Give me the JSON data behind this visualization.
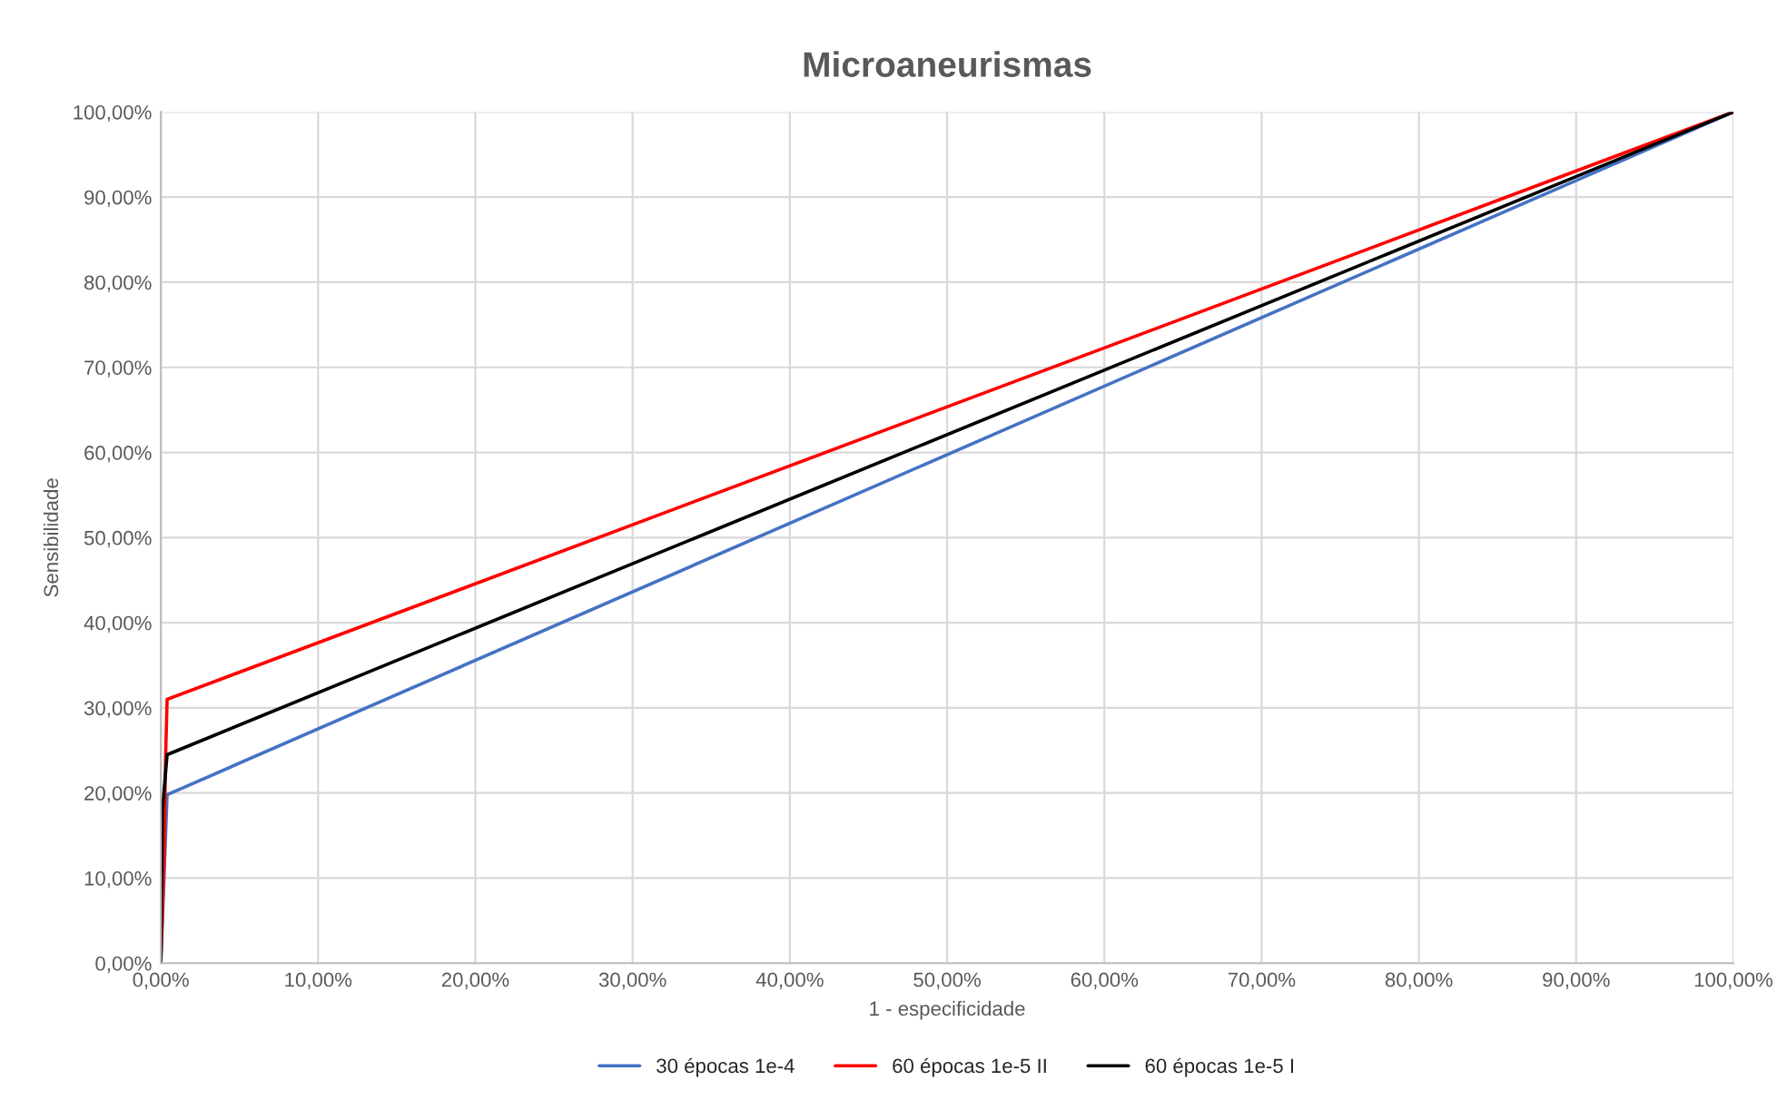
{
  "chart_data": {
    "type": "line",
    "title": "Microaneurismas",
    "xlabel": "1 - especificidade",
    "ylabel": "Sensibilidade",
    "series": [
      {
        "name": "30 épocas 1e-4",
        "color": "#4472c4",
        "x": [
          0,
          0.4,
          100
        ],
        "values": [
          0,
          19.8,
          100
        ]
      },
      {
        "name": "60 épocas 1e-5 II",
        "color": "#ff0000",
        "x": [
          0,
          0.2,
          0.3,
          0.4,
          100
        ],
        "values": [
          0,
          12,
          24,
          31,
          100
        ]
      },
      {
        "name": "60 épocas 1e-5 I",
        "color": "#000000",
        "x": [
          0,
          0.1,
          0.4,
          100
        ],
        "values": [
          0,
          18,
          24.5,
          100
        ]
      }
    ],
    "xlim": [
      0,
      100
    ],
    "ylim": [
      0,
      100
    ],
    "xticks": [
      {
        "value": 0,
        "label": "0,00%"
      },
      {
        "value": 10,
        "label": "10,00%"
      },
      {
        "value": 20,
        "label": "20,00%"
      },
      {
        "value": 30,
        "label": "30,00%"
      },
      {
        "value": 40,
        "label": "40,00%"
      },
      {
        "value": 50,
        "label": "50,00%"
      },
      {
        "value": 60,
        "label": "60,00%"
      },
      {
        "value": 70,
        "label": "70,00%"
      },
      {
        "value": 80,
        "label": "80,00%"
      },
      {
        "value": 90,
        "label": "90,00%"
      },
      {
        "value": 100,
        "label": "100,00%"
      }
    ],
    "yticks": [
      {
        "value": 0,
        "label": "0,00%"
      },
      {
        "value": 10,
        "label": "10,00%"
      },
      {
        "value": 20,
        "label": "20,00%"
      },
      {
        "value": 30,
        "label": "30,00%"
      },
      {
        "value": 40,
        "label": "40,00%"
      },
      {
        "value": 50,
        "label": "50,00%"
      },
      {
        "value": 60,
        "label": "60,00%"
      },
      {
        "value": 70,
        "label": "70,00%"
      },
      {
        "value": 80,
        "label": "80,00%"
      },
      {
        "value": 90,
        "label": "90,00%"
      },
      {
        "value": 100,
        "label": "100,00%"
      }
    ],
    "grid": true,
    "legend": "bottom",
    "marker": "none",
    "line_style": "solid"
  }
}
